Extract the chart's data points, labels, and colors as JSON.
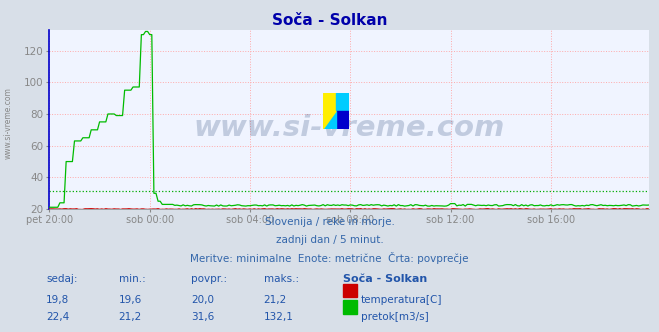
{
  "title": "Soča - Solkan",
  "background_color": "#d8dfe8",
  "plot_bg_color": "#f0f4ff",
  "grid_color": "#ffaaaa",
  "xlabel": "",
  "ylabel": "",
  "ylim": [
    20,
    133
  ],
  "xlim": [
    0,
    287
  ],
  "xtick_labels": [
    "pet 20:00",
    "sob 00:00",
    "sob 04:00",
    "sob 08:00",
    "sob 12:00",
    "sob 16:00"
  ],
  "xtick_positions": [
    0,
    48,
    96,
    144,
    192,
    240
  ],
  "ytick_positions": [
    20,
    40,
    60,
    80,
    100,
    120
  ],
  "temp_color": "#cc0000",
  "flow_color": "#00bb00",
  "avg_temp_color": "#dd6666",
  "avg_flow_color": "#00aa00",
  "yaxis_color": "#0000cc",
  "watermark_text_color": "#1a3a6e",
  "subtitle_lines": [
    "Slovenija / reke in morje.",
    "zadnji dan / 5 minut.",
    "Meritve: minimalne  Enote: metrične  Črta: povprečje"
  ],
  "table_headers": [
    "sedaj:",
    "min.:",
    "povpr.:",
    "maks.:",
    "Soča - Solkan"
  ],
  "table_row1": [
    "19,8",
    "19,6",
    "20,0",
    "21,2",
    "temperatura[C]"
  ],
  "table_row2": [
    "22,4",
    "21,2",
    "31,6",
    "132,1",
    "pretok[m3/s]"
  ],
  "temp_avg": 20.0,
  "flow_avg": 31.6
}
